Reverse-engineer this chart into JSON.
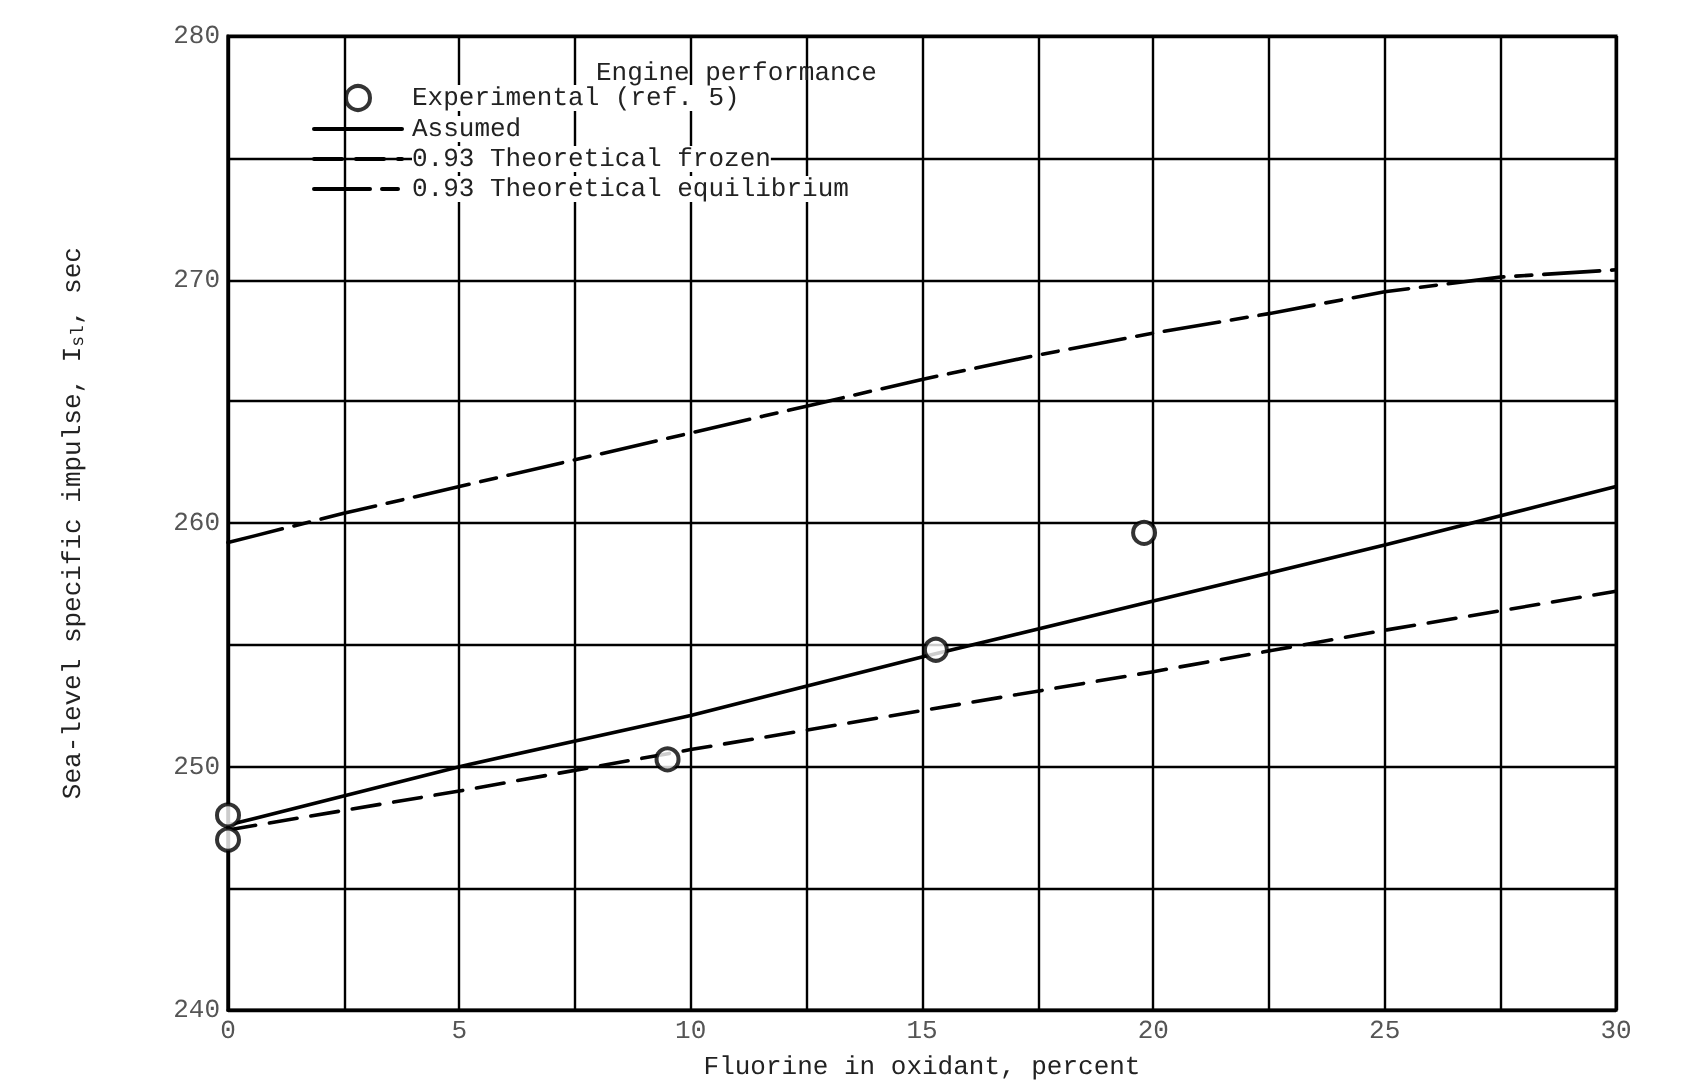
{
  "chart_data": {
    "type": "line",
    "xlabel": "Fluorine in oxidant, percent",
    "ylabel": "Sea-level specific impulse, I$_{sl}$, sec",
    "legend_title": "Engine performance",
    "xlim": [
      0,
      30
    ],
    "xticks": [
      0,
      {
        "value": 2.5,
        "label": null
      },
      5,
      {
        "value": 7.5,
        "label": null
      },
      10,
      {
        "value": 12.5,
        "label": null
      },
      15,
      {
        "value": 17.5,
        "label": null
      },
      20,
      {
        "value": 22.5,
        "label": null
      },
      25,
      {
        "value": 27.5,
        "label": null
      },
      30
    ],
    "ylim": [
      240,
      280
    ],
    "yticks": [
      240,
      {
        "value": 245,
        "label": null
      },
      250,
      {
        "value": 255,
        "label": null
      },
      260,
      {
        "value": 265,
        "label": null
      },
      270,
      {
        "value": 275,
        "label": null
      },
      280
    ],
    "grid": true,
    "legend": "top left",
    "series": [
      {
        "name": "Experimental (ref. 5)",
        "type": "scatter",
        "marker": "circle",
        "color": "#000000",
        "x": [
          0,
          0,
          9.5,
          15.3,
          19.8
        ],
        "values": [
          248.0,
          247.0,
          250.3,
          254.8,
          259.6
        ]
      },
      {
        "name": "Assumed",
        "line_style": "solid",
        "marker": "none",
        "color": "#000000",
        "x": [
          0,
          5,
          10,
          15,
          20,
          25,
          30
        ],
        "values": [
          247.6,
          250.0,
          252.1,
          254.5,
          256.8,
          259.1,
          261.5
        ]
      },
      {
        "name": "0.93 Theoretical frozen",
        "line_style": "dashed",
        "marker": "none",
        "color": "#000000",
        "x": [
          0,
          5,
          10,
          15,
          20,
          25,
          30
        ],
        "values": [
          247.4,
          249.0,
          250.7,
          252.3,
          253.9,
          255.6,
          257.2
        ]
      },
      {
        "name": "0.93 Theoretical equilibrium",
        "line_style": "dashdot",
        "marker": "none",
        "color": "#000000",
        "x": [
          0,
          2.5,
          5,
          7.5,
          10,
          12.5,
          15,
          17.5,
          20,
          22.5,
          25,
          27.5,
          30
        ],
        "values": [
          259.2,
          260.4,
          261.5,
          262.6,
          263.7,
          264.8,
          265.9,
          266.9,
          267.8,
          268.6,
          269.5,
          270.1,
          270.4
        ]
      }
    ]
  }
}
